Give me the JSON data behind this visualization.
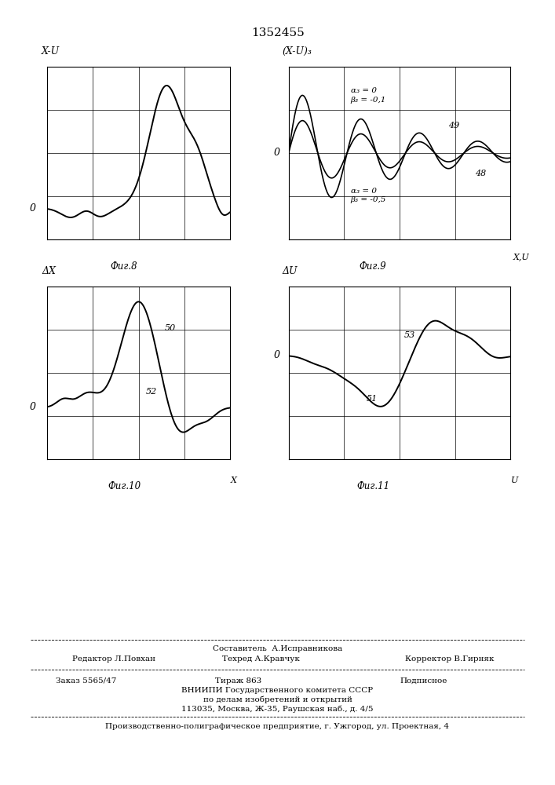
{
  "title": "1352455",
  "fig8_ylabel": "X-U",
  "fig9_ylabel": "(X-U)₃",
  "fig10_ylabel": "ΔX",
  "fig11_ylabel": "ΔU",
  "fig8_caption": "Фиг.8",
  "fig9_caption": "Фиг.9",
  "fig10_caption": "Фиг.10",
  "fig11_caption": "Фиг.11",
  "fig9_xlabel": "X,U",
  "fig10_xlabel": "X",
  "fig11_xlabel": "U",
  "fig9_annotation1": "α₃ = 0\nβ₃ = -0,1",
  "fig9_annotation2": "α₃ = 0\nβ₃ = -0,5",
  "fig9_label49": "49",
  "fig9_label48": "48",
  "fig10_label50": "50",
  "fig10_label52": "52",
  "fig11_label53": "53",
  "fig11_label51": "51",
  "footer_sestavitel": "Составитель  А.Исправникова",
  "footer_redaktor": "Редактор Л.Повхан",
  "footer_tehred": "Техред А.Кравчук",
  "footer_korrektor": "Корректор В.Гирняк",
  "footer_zakaz": "Заказ 5565/47",
  "footer_tirazh": "Тираж 863",
  "footer_podpisnoe": "Подписное",
  "footer_vnipi": "ВНИИПИ Государственного комитета СССР",
  "footer_po_delam": "по делам изобретений и открытий",
  "footer_address": "113035, Москва, Ж-35, Раушская наб., д. 4/5",
  "footer_proizvod": "Производственно-полиграфическое предприятие, г. Ужгород, ул. Проектная, 4"
}
